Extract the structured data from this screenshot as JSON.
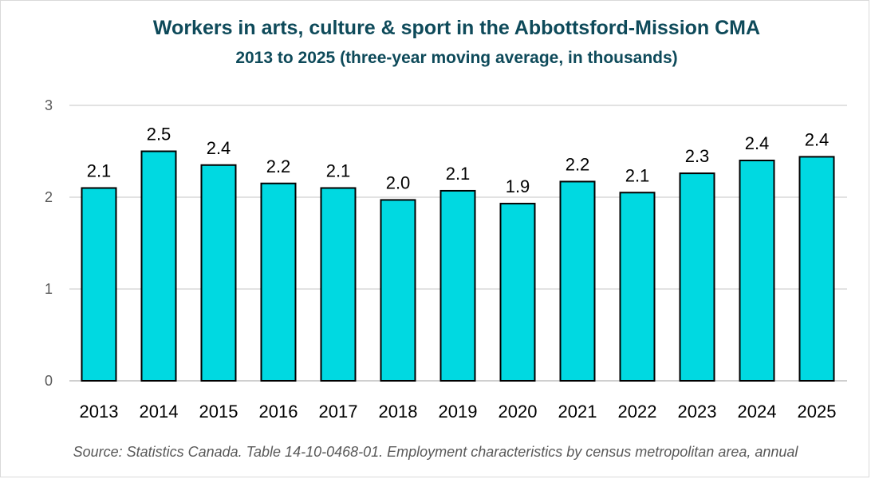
{
  "chart_data": {
    "type": "bar",
    "title": "Workers in arts, culture & sport in the Abbottsford-Mission CMA",
    "subtitle": "2013 to 2025 (three-year moving average, in thousands)",
    "categories": [
      "2013",
      "2014",
      "2015",
      "2016",
      "2017",
      "2018",
      "2019",
      "2020",
      "2021",
      "2022",
      "2023",
      "2024",
      "2025"
    ],
    "values": [
      2.1,
      2.5,
      2.35,
      2.15,
      2.1,
      1.97,
      2.07,
      1.93,
      2.17,
      2.05,
      2.26,
      2.4,
      2.44
    ],
    "data_labels": [
      "2.1",
      "2.5",
      "2.4",
      "2.2",
      "2.1",
      "2.0",
      "2.1",
      "1.9",
      "2.2",
      "2.1",
      "2.3",
      "2.4",
      "2.4"
    ],
    "yticks": [
      "0",
      "1",
      "2",
      "3"
    ],
    "ylim": [
      0,
      3
    ],
    "xlabel": "",
    "ylabel": "",
    "grid": true,
    "legend": "none",
    "bar_color": "#00d9e1",
    "bar_outline": "#000000",
    "grid_color": "#d9d9d9",
    "source": "Source: Statistics Canada. Table 14-10-0468-01. Employment characteristics by census metropolitan area, annual"
  }
}
